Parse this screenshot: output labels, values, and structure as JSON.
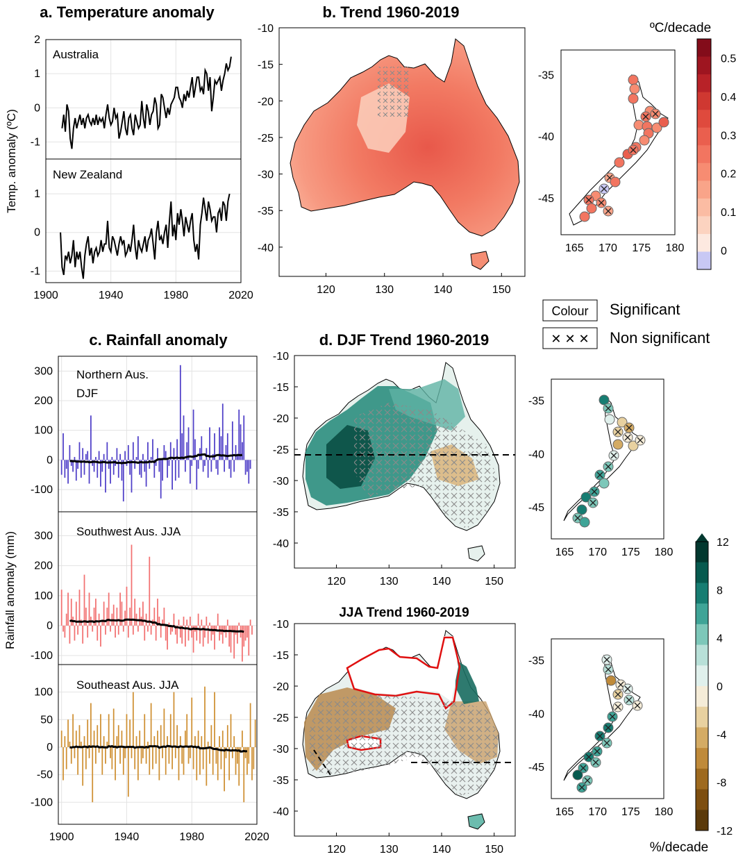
{
  "chart_data": [
    {
      "id": "a",
      "type": "line",
      "title": "a. Temperature anomaly",
      "ylabel": "Temp. anomaly (ºC)",
      "xlim": [
        1900,
        2020
      ],
      "xticks": [
        "1900",
        "1940",
        "1980",
        "2020"
      ],
      "panels": [
        {
          "label": "Australia",
          "ylim": [
            -1.5,
            2
          ],
          "yticks": [
            "2",
            "1",
            "0",
            "-1"
          ],
          "series": [
            {
              "x_start": 1910,
              "values": [
                -0.6,
                -0.2,
                -0.7,
                0.1,
                -0.1,
                -0.9,
                -1.2,
                -0.6,
                -0.3,
                -0.6,
                -0.4,
                -0.2,
                -0.5,
                -0.3,
                -0.6,
                -0.3,
                -0.2,
                -0.4,
                -0.5,
                -0.3,
                -0.5,
                -0.2,
                -0.5,
                -0.3,
                -0.4,
                -0.3,
                -0.6,
                -0.2,
                0.1,
                -0.3,
                -0.5,
                -0.4,
                0.0,
                -0.3,
                -0.2,
                -0.9,
                -0.7,
                -0.4,
                -0.1,
                -0.6,
                -0.8,
                -0.3,
                -0.2,
                -0.6,
                -0.8,
                -0.2,
                -0.4,
                -0.6,
                -0.5,
                0.2,
                -0.3,
                -0.6,
                0.1,
                -0.1,
                -0.5,
                -0.2,
                -0.1,
                0.3,
                0.1,
                -0.6,
                -0.5,
                0.4,
                0.3,
                0.0,
                -0.3,
                0.0,
                -0.2,
                0.1,
                0.2,
                0.3,
                0.6,
                0.6,
                0.3,
                0.2,
                0.0,
                0.4,
                0.2,
                0.5,
                0.3,
                0.6,
                0.9,
                0.3,
                0.6,
                0.9,
                0.9,
                0.5,
                0.6,
                0.4,
                1.1,
                1.0,
                0.5,
                0.9,
                -0.1,
                0.3,
                0.8,
                0.7,
                0.8,
                0.9,
                0.5,
                0.8,
                1.0,
                1.3,
                1.1,
                1.2,
                1.5
              ]
            }
          ]
        },
        {
          "label": "New Zealand",
          "ylim": [
            -1.3,
            1.9
          ],
          "yticks": [
            "1",
            "0",
            "-1"
          ],
          "series": [
            {
              "x_start": 1909,
              "values": [
                0.0,
                -0.9,
                -1.1,
                -0.6,
                -0.7,
                -0.5,
                -0.8,
                -0.6,
                -0.2,
                -0.9,
                -0.5,
                -0.7,
                -0.5,
                -0.9,
                -1.2,
                -0.6,
                -0.3,
                -0.1,
                -0.6,
                -0.4,
                -0.8,
                -0.5,
                -0.4,
                -0.6,
                -0.5,
                -0.2,
                -0.5,
                -0.3,
                -0.3,
                0.3,
                -0.4,
                -0.5,
                -0.1,
                -0.2,
                -0.4,
                -0.6,
                -0.3,
                -0.1,
                -0.3,
                -0.2,
                -0.6,
                -0.5,
                -0.3,
                -0.5,
                -0.2,
                0.2,
                -0.4,
                -0.7,
                -0.2,
                -0.4,
                -0.5,
                -0.3,
                -0.1,
                -0.5,
                -0.2,
                -0.1,
                0.1,
                -0.3,
                -0.7,
                0.0,
                0.3,
                -0.2,
                -0.1,
                -0.3,
                0.0,
                0.2,
                -0.4,
                0.3,
                0.8,
                -0.1,
                0.2,
                -0.2,
                0.5,
                0.2,
                0.6,
                0.3,
                -0.1,
                0.4,
                0.2,
                0.0,
                0.3,
                0.5,
                -0.2,
                -0.5,
                -0.3,
                -0.7,
                0.2,
                0.5,
                0.9,
                0.6,
                0.3,
                0.8,
                0.6,
                0.3,
                0.4,
                0.4,
                0.0,
                0.5,
                0.6,
                0.3,
                0.8,
                0.7,
                0.3,
                0.8,
                1.0
              ]
            }
          ]
        }
      ]
    },
    {
      "id": "b",
      "type": "heatmap",
      "title": "b. Trend 1960-2019",
      "xlim": [
        112,
        154
      ],
      "ylim": [
        -44,
        -10
      ],
      "xticks": [
        "120",
        "130",
        "140",
        "150"
      ],
      "yticks": [
        "-10",
        "-15",
        "-20",
        "-25",
        "-30",
        "-35",
        "-40"
      ]
    },
    {
      "id": "b-nz",
      "type": "scatter",
      "xlim": [
        163,
        180
      ],
      "ylim": [
        -48,
        -33
      ],
      "xticks": [
        "165",
        "170",
        "175",
        "180"
      ],
      "yticks": [
        "-35",
        "-40",
        "-45"
      ]
    },
    {
      "id": "temp-colorbar",
      "type": "heatmap",
      "label": "ºC/decade",
      "ticks": [
        "0.5",
        "0.4",
        "0.3",
        "0.2",
        "0.1",
        "0"
      ],
      "range": [
        -0.05,
        0.55
      ],
      "colors": [
        "#c8c8f4",
        "#fde9e0",
        "#fcd3c0",
        "#fbbca3",
        "#f9a489",
        "#f78c72",
        "#f27560",
        "#ea5f4e",
        "#df4a3d",
        "#cf3831",
        "#b82228",
        "#9e1520",
        "#830c1a"
      ]
    },
    {
      "id": "legend",
      "type": "table",
      "colour_box": "Colour",
      "significant": "Significant",
      "cross_box": "✕ ✕ ✕",
      "non_significant": "Non significant"
    },
    {
      "id": "c",
      "type": "bar",
      "title": "c. Rainfall anomaly",
      "ylabel": "Rainfall anomaly (mm)",
      "xlim": [
        1898,
        2020
      ],
      "xticks": [
        "1900",
        "1940",
        "1980",
        "2020"
      ],
      "panels": [
        {
          "label1": "Northern Aus.",
          "label2": "DJF",
          "ylim": [
            -175,
            350
          ],
          "yticks": [
            "300",
            "200",
            "100",
            "0",
            "-100"
          ],
          "color": "#4f3fc8",
          "x_start": 1900,
          "values": [
            -50,
            90,
            -60,
            -30,
            -80,
            50,
            -20,
            -40,
            10,
            -70,
            -30,
            60,
            -60,
            40,
            -50,
            20,
            30,
            -80,
            150,
            -20,
            -40,
            10,
            -60,
            30,
            -90,
            -40,
            20,
            -110,
            60,
            -30,
            -80,
            10,
            -50,
            -20,
            40,
            -60,
            20,
            -70,
            -140,
            30,
            -20,
            50,
            -50,
            -110,
            60,
            -30,
            10,
            80,
            -50,
            -60,
            20,
            -40,
            -90,
            60,
            -30,
            10,
            70,
            -60,
            -20,
            40,
            -40,
            -130,
            -70,
            50,
            30,
            -60,
            -20,
            60,
            -100,
            40,
            -70,
            70,
            -60,
            320,
            90,
            150,
            -40,
            60,
            110,
            -80,
            -20,
            170,
            70,
            -100,
            -30,
            40,
            80,
            -40,
            -20,
            40,
            -60,
            110,
            -40,
            20,
            90,
            -30,
            -50,
            110,
            80,
            190,
            -40,
            50,
            90,
            -30,
            -60,
            130,
            -40,
            50,
            20,
            170,
            120,
            60,
            150,
            -50,
            -40,
            -80,
            -30
          ]
        },
        {
          "label1": "Southwest Aus. JJA",
          "ylim": [
            -130,
            380
          ],
          "yticks": [
            "300",
            "200",
            "100",
            "0",
            "-100"
          ],
          "color": "#f27171",
          "x_start": 1900,
          "values": [
            120,
            -20,
            -40,
            40,
            110,
            -60,
            90,
            30,
            -50,
            80,
            -30,
            120,
            20,
            -60,
            170,
            60,
            -40,
            110,
            30,
            -20,
            60,
            90,
            -50,
            40,
            -70,
            20,
            80,
            -30,
            60,
            110,
            -20,
            40,
            70,
            -40,
            60,
            -30,
            110,
            80,
            -20,
            50,
            130,
            -40,
            60,
            270,
            -30,
            90,
            40,
            -20,
            60,
            30,
            80,
            -50,
            40,
            -20,
            230,
            -30,
            20,
            60,
            -50,
            90,
            30,
            -40,
            20,
            60,
            -50,
            -80,
            10,
            -30,
            -20,
            40,
            -30,
            -60,
            20,
            -40,
            -60,
            30,
            -70,
            20,
            -50,
            30,
            -40,
            -90,
            -20,
            -50,
            40,
            -60,
            20,
            -70,
            -40,
            30,
            -60,
            10,
            -50,
            -30,
            -80,
            -20,
            40,
            -50,
            -30,
            -60,
            -20,
            -40,
            20,
            -70,
            -90,
            -20,
            -110,
            -30,
            -60,
            10,
            -40,
            -120,
            -70,
            -50,
            -40,
            -100,
            20,
            -30
          ]
        },
        {
          "label1": "Southeast Aus. JJA",
          "ylim": [
            -140,
            150
          ],
          "yticks": [
            "100",
            "50",
            "0",
            "-50",
            "-100"
          ],
          "color": "#cf9033",
          "x_start": 1900,
          "values": [
            30,
            -60,
            20,
            -40,
            50,
            10,
            -30,
            60,
            -20,
            30,
            -50,
            40,
            10,
            -70,
            20,
            -40,
            50,
            -20,
            80,
            -100,
            30,
            -30,
            40,
            -10,
            60,
            -50,
            20,
            -30,
            10,
            60,
            -20,
            -40,
            70,
            -60,
            20,
            40,
            -30,
            30,
            -50,
            -20,
            60,
            -90,
            50,
            -20,
            100,
            -40,
            20,
            -60,
            30,
            -30,
            -20,
            60,
            -30,
            10,
            -50,
            80,
            -40,
            20,
            -30,
            30,
            -60,
            40,
            -20,
            70,
            -50,
            20,
            -30,
            60,
            -40,
            100,
            -20,
            40,
            -60,
            20,
            -30,
            -50,
            30,
            60,
            -30,
            -20,
            90,
            -40,
            20,
            -60,
            30,
            -50,
            20,
            -40,
            110,
            -70,
            10,
            -30,
            40,
            -50,
            100,
            -30,
            -60,
            20,
            -40,
            30,
            -80,
            -20,
            40,
            -60,
            60,
            -20,
            20,
            -50,
            -30,
            -70,
            -10,
            30,
            -100,
            -20,
            -50,
            -30,
            80,
            -60,
            -40,
            50
          ]
        }
      ]
    },
    {
      "id": "d-djf",
      "type": "heatmap",
      "title": "d. DJF Trend 1960-2019",
      "xlim": [
        112,
        154
      ],
      "ylim": [
        -44,
        -10
      ],
      "xticks": [
        "120",
        "130",
        "140",
        "150"
      ],
      "yticks": [
        "-10",
        "-15",
        "-20",
        "-25",
        "-30",
        "-35",
        "-40"
      ]
    },
    {
      "id": "d-jja",
      "type": "heatmap",
      "title": "JJA Trend 1960-2019",
      "xlim": [
        112,
        154
      ],
      "ylim": [
        -44,
        -10
      ],
      "xticks": [
        "120",
        "130",
        "140",
        "150"
      ],
      "yticks": [
        "-10",
        "-15",
        "-20",
        "-25",
        "-30",
        "-35",
        "-40"
      ]
    },
    {
      "id": "rain-colorbar",
      "type": "heatmap",
      "label": "%/decade",
      "ticks": [
        "12",
        "8",
        "4",
        "0",
        "-4",
        "-8",
        "-12"
      ],
      "range": [
        -12,
        12
      ],
      "colors": [
        "#5b3a0a",
        "#7d4e10",
        "#9e6a1f",
        "#bf8a3a",
        "#d4ab64",
        "#e8d1a0",
        "#f5ecd8",
        "#e0f0ec",
        "#b8e0d8",
        "#7dc7b9",
        "#3fa497",
        "#177d72",
        "#075a4f",
        "#02382f"
      ]
    }
  ]
}
